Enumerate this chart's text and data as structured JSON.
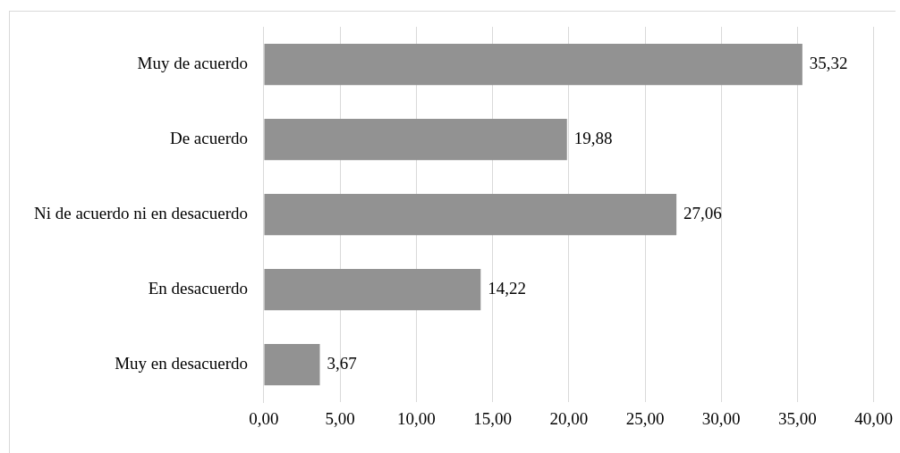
{
  "chart_data": {
    "type": "bar",
    "orientation": "horizontal",
    "categories": [
      "Muy de acuerdo",
      "De acuerdo",
      "Ni de acuerdo ni en desacuerdo",
      "En desacuerdo",
      "Muy en desacuerdo"
    ],
    "values": [
      35.32,
      19.88,
      27.06,
      14.22,
      3.67
    ],
    "value_labels": [
      "35,32",
      "19,88",
      "27,06",
      "14,22",
      "3,67"
    ],
    "color": "#929292",
    "xlim": [
      0,
      40
    ],
    "xticks": [
      {
        "value": 0,
        "label": "0,00"
      },
      {
        "value": 5,
        "label": "5,00"
      },
      {
        "value": 10,
        "label": "10,00"
      },
      {
        "value": 15,
        "label": "15,00"
      },
      {
        "value": 20,
        "label": "20,00"
      },
      {
        "value": 25,
        "label": "25,00"
      },
      {
        "value": 30,
        "label": "30,00"
      },
      {
        "value": 35,
        "label": "35,00"
      },
      {
        "value": 40,
        "label": "40,00"
      }
    ],
    "grid": "x"
  }
}
